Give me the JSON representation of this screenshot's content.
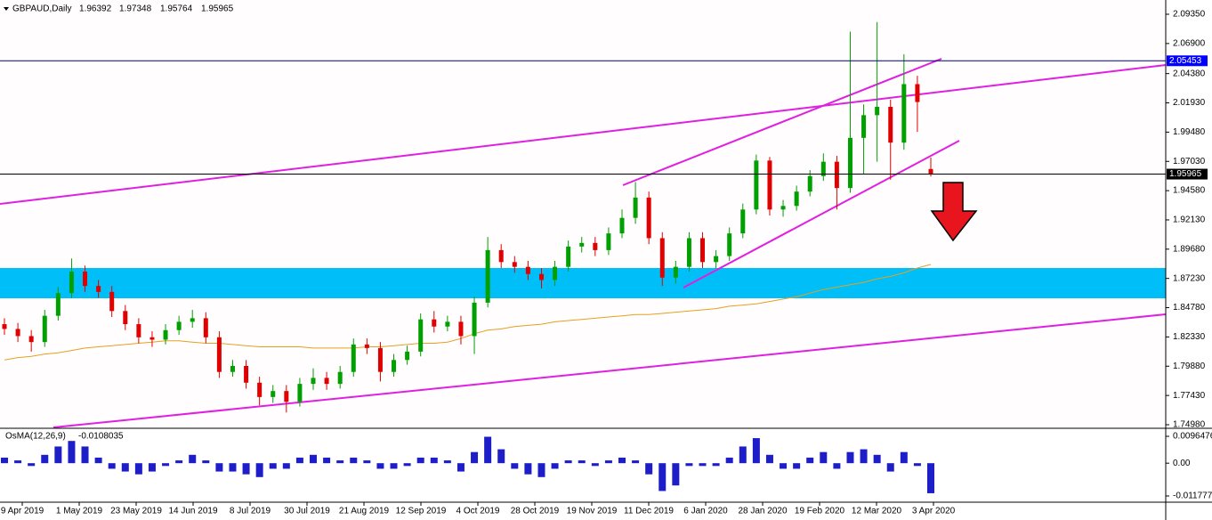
{
  "chart_data": [
    {
      "type": "candlestick",
      "title": "GBPAUD,Daily",
      "open": [
        1.834,
        1.83,
        1.824,
        1.819,
        1.841,
        1.86,
        1.878,
        1.866,
        1.861,
        1.845,
        1.834,
        1.823,
        1.821,
        1.829,
        1.836,
        1.839,
        1.823,
        1.794,
        1.799,
        1.785,
        1.773,
        1.778,
        1.769,
        1.784,
        1.789,
        1.784,
        1.794,
        1.817,
        1.814,
        1.794,
        1.804,
        1.811,
        1.838,
        1.832,
        1.836,
        1.824,
        1.852,
        1.896,
        1.886,
        1.882,
        1.876,
        1.871,
        1.882,
        1.899,
        1.902,
        1.896,
        1.91,
        1.923,
        1.94,
        1.906,
        1.873,
        1.882,
        1.906,
        1.886,
        1.891,
        1.91,
        1.93,
        1.971,
        1.93,
        1.933,
        1.945,
        1.958,
        1.97,
        1.948,
        1.99,
        2.009,
        2.016,
        1.986,
        2.035,
        1.96392
      ],
      "high": [
        1.839,
        1.835,
        1.829,
        1.846,
        1.865,
        1.889,
        1.883,
        1.871,
        1.866,
        1.85,
        1.839,
        1.828,
        1.834,
        1.841,
        1.846,
        1.844,
        1.828,
        1.804,
        1.804,
        1.79,
        1.783,
        1.783,
        1.789,
        1.797,
        1.794,
        1.799,
        1.822,
        1.822,
        1.819,
        1.809,
        1.816,
        1.843,
        1.845,
        1.841,
        1.841,
        1.857,
        1.907,
        1.901,
        1.891,
        1.887,
        1.881,
        1.887,
        1.904,
        1.907,
        1.907,
        1.915,
        1.93,
        1.953,
        1.945,
        1.911,
        1.887,
        1.911,
        1.911,
        1.896,
        1.915,
        1.935,
        1.976,
        1.974,
        1.938,
        1.95,
        1.963,
        1.977,
        1.975,
        2.079,
        2.018,
        2.087,
        2.022,
        2.06,
        2.042,
        1.97348
      ],
      "low": [
        1.825,
        1.819,
        1.811,
        1.815,
        1.837,
        1.856,
        1.861,
        1.856,
        1.84,
        1.829,
        1.818,
        1.815,
        1.817,
        1.825,
        1.831,
        1.818,
        1.789,
        1.79,
        1.78,
        1.766,
        1.768,
        1.76,
        1.765,
        1.779,
        1.779,
        1.78,
        1.79,
        1.809,
        1.786,
        1.79,
        1.8,
        1.807,
        1.827,
        1.828,
        1.817,
        1.809,
        1.848,
        1.881,
        1.877,
        1.871,
        1.864,
        1.866,
        1.878,
        1.894,
        1.891,
        1.892,
        1.906,
        1.918,
        1.901,
        1.866,
        1.868,
        1.878,
        1.881,
        1.881,
        1.887,
        1.906,
        1.926,
        1.925,
        1.924,
        1.929,
        1.941,
        1.954,
        1.93,
        1.944,
        1.96,
        1.97,
        1.955,
        1.98,
        1.995,
        1.95764
      ],
      "close": [
        1.83,
        1.824,
        1.819,
        1.841,
        1.86,
        1.878,
        1.866,
        1.861,
        1.845,
        1.834,
        1.823,
        1.821,
        1.829,
        1.836,
        1.839,
        1.823,
        1.794,
        1.799,
        1.785,
        1.773,
        1.778,
        1.769,
        1.784,
        1.789,
        1.784,
        1.794,
        1.817,
        1.814,
        1.794,
        1.804,
        1.811,
        1.838,
        1.832,
        1.836,
        1.824,
        1.852,
        1.896,
        1.886,
        1.882,
        1.876,
        1.871,
        1.882,
        1.899,
        1.902,
        1.896,
        1.91,
        1.923,
        1.94,
        1.906,
        1.873,
        1.882,
        1.906,
        1.886,
        1.891,
        1.91,
        1.93,
        1.971,
        1.93,
        1.933,
        1.945,
        1.958,
        1.97,
        1.948,
        1.99,
        2.009,
        2.016,
        1.986,
        2.035,
        2.02,
        1.95965
      ],
      "up_color": "#00a000",
      "down_color": "#e00000",
      "ma": {
        "color": "#e6a020",
        "values": [
          1.804,
          1.806,
          1.807,
          1.809,
          1.81,
          1.812,
          1.814,
          1.815,
          1.816,
          1.817,
          1.818,
          1.819,
          1.82,
          1.82,
          1.819,
          1.818,
          1.818,
          1.817,
          1.816,
          1.815,
          1.815,
          1.815,
          1.815,
          1.814,
          1.814,
          1.814,
          1.814,
          1.815,
          1.815,
          1.816,
          1.817,
          1.818,
          1.818,
          1.819,
          1.822,
          1.826,
          1.829,
          1.83,
          1.832,
          1.833,
          1.834,
          1.836,
          1.837,
          1.838,
          1.839,
          1.84,
          1.841,
          1.842,
          1.842,
          1.843,
          1.844,
          1.845,
          1.846,
          1.847,
          1.849,
          1.85,
          1.851,
          1.853,
          1.855,
          1.857,
          1.86,
          1.863,
          1.865,
          1.867,
          1.869,
          1.872,
          1.874,
          1.877,
          1.881,
          1.884
        ]
      },
      "levels": [
        {
          "value": 2.05453,
          "color": "#000080",
          "label_color": "#0000ff"
        }
      ],
      "last_price_color": "#000000",
      "ylim": [
        1.7483,
        2.1032
      ],
      "yticks": [
        {
          "value": 2.0935,
          "label": "2.09350"
        },
        {
          "value": 2.069,
          "label": "2.06900"
        },
        {
          "value": 2.0438,
          "label": "2.04380"
        },
        {
          "value": 2.0193,
          "label": "2.01930"
        },
        {
          "value": 1.9948,
          "label": "1.99480"
        },
        {
          "value": 1.9703,
          "label": "1.97030"
        },
        {
          "value": 1.9458,
          "label": "1.94580"
        },
        {
          "value": 1.9213,
          "label": "1.92130"
        },
        {
          "value": 1.8968,
          "label": "1.89680"
        },
        {
          "value": 1.8723,
          "label": "1.87230"
        },
        {
          "value": 1.8478,
          "label": "1.84780"
        },
        {
          "value": 1.8233,
          "label": "1.82330"
        },
        {
          "value": 1.7988,
          "label": "1.79880"
        },
        {
          "value": 1.7743,
          "label": "1.77430"
        },
        {
          "value": 1.7498,
          "label": "1.74980"
        }
      ],
      "x_labels": [
        "9 Apr 2019",
        "1 May 2019",
        "23 May 2019",
        "14 Jun 2019",
        "8 Jul 2019",
        "30 Jul 2019",
        "21 Aug 2019",
        "12 Sep 2019",
        "4 Oct 2019",
        "28 Oct 2019",
        "19 Nov 2019",
        "11 Dec 2019",
        "6 Jan 2020",
        "28 Jan 2020",
        "19 Feb 2020",
        "12 Mar 2020",
        "3 Apr 2020"
      ]
    },
    {
      "type": "bar",
      "title": "OsMA(12,26,9)",
      "color": "#1e1ec8",
      "values": [
        0.002,
        0.001,
        -0.001,
        0.003,
        0.006,
        0.008,
        0.006,
        0.002,
        -0.002,
        -0.003,
        -0.004,
        -0.003,
        -0.001,
        0.001,
        0.003,
        0.001,
        -0.003,
        -0.003,
        -0.004,
        -0.005,
        -0.002,
        -0.002,
        0.002,
        0.003,
        0.002,
        0.001,
        0.002,
        0.001,
        -0.002,
        -0.002,
        -0.001,
        0.002,
        0.002,
        0.001,
        -0.003,
        0.004,
        0.0095,
        0.005,
        -0.002,
        -0.004,
        -0.005,
        -0.002,
        0.001,
        0.001,
        -0.001,
        0.001,
        0.002,
        0.001,
        -0.004,
        -0.01,
        -0.008,
        -0.001,
        -0.001,
        -0.001,
        0.002,
        0.006,
        0.009,
        0.003,
        -0.002,
        -0.002,
        0.002,
        0.004,
        -0.002,
        0.004,
        0.005,
        0.003,
        -0.003,
        0.004,
        -0.001,
        -0.0108035
      ],
      "ylim": [
        -0.0137,
        0.0119
      ],
      "yticks": [
        0.0096476,
        {
          "value": 0,
          "label": "0.00"
        },
        -0.011777
      ]
    }
  ]
}
